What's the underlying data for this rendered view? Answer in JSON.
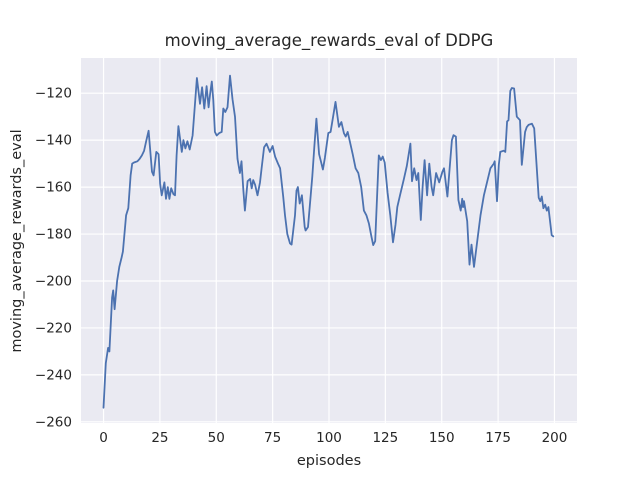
{
  "figure": {
    "background": "#ffffff"
  },
  "chart_data": {
    "type": "line",
    "title": "moving_average_rewards_eval of DDPG",
    "xlabel": "episodes",
    "ylabel": "moving_average_rewards_eval",
    "xlim": [
      -10,
      210
    ],
    "ylim": [
      -260.5,
      -105
    ],
    "grid": true,
    "legend_position": "none",
    "x_ticks": {
      "values": [
        0,
        25,
        50,
        75,
        100,
        125,
        150,
        175,
        200
      ],
      "labels": [
        "0",
        "25",
        "50",
        "75",
        "100",
        "125",
        "150",
        "175",
        "200"
      ]
    },
    "y_ticks": {
      "values": [
        -120,
        -140,
        -160,
        -180,
        -200,
        -220,
        -240,
        -260
      ],
      "labels": [
        "−120",
        "−140",
        "−160",
        "−180",
        "−200",
        "−220",
        "−240",
        "−260"
      ]
    },
    "style": {
      "axes_background": "#eaeaf2",
      "grid_color": "#ffffff",
      "line_color": "#4c72b0",
      "text_color": "#262626",
      "line_width": 1.8
    },
    "series": [
      {
        "name": "moving_average_rewards_eval",
        "x": [
          0,
          1,
          2,
          2.6,
          3.8,
          4.3,
          4.9,
          6,
          7,
          8,
          8.6,
          10,
          11,
          12,
          12.7,
          13.5,
          15,
          16,
          17,
          18,
          19,
          20,
          21.5,
          22.2,
          23.4,
          24.4,
          25.1,
          25.8,
          27,
          27.7,
          28.5,
          29.2,
          30,
          31,
          31.7,
          32.4,
          33.2,
          34.7,
          35.4,
          36.3,
          37.2,
          38.2,
          39.5,
          40.5,
          41.4,
          42.8,
          43.7,
          44.7,
          45.7,
          46.6,
          47.3,
          48,
          48.7,
          49.4,
          50.2,
          51.3,
          52.4,
          53.1,
          54,
          55,
          56.1,
          57.2,
          58.3,
          59.4,
          60.5,
          61.2,
          62,
          62.7,
          63.9,
          65,
          65.7,
          66.4,
          67.2,
          68.3,
          69.4,
          70.1,
          71.2,
          72.3,
          73.8,
          75,
          76.1,
          77.4,
          78.3,
          79.7,
          80.5,
          81.5,
          82.7,
          83.4,
          84.9,
          85.6,
          86.2,
          87,
          88,
          89.2,
          89.6,
          90.7,
          91.5,
          92.6,
          93.5,
          94.4,
          95.6,
          96.4,
          97.3,
          98.2,
          99.7,
          100.7,
          101.8,
          102.9,
          104.4,
          105.5,
          106.6,
          107.4,
          108.3,
          109.6,
          110.5,
          111.8,
          113,
          114.3,
          115.5,
          116.6,
          117.7,
          118.8,
          119.6,
          120.5,
          122.1,
          123,
          123.8,
          124.7,
          126,
          127.2,
          128.4,
          129.5,
          130.3,
          131.5,
          133.2,
          134.5,
          136.1,
          136.8,
          137.8,
          138.8,
          139.6,
          140.7,
          141.5,
          142.4,
          143.5,
          144.5,
          145.5,
          146.2,
          147.5,
          148.9,
          150.3,
          151,
          152.5,
          153.8,
          154.5,
          155.2,
          156.3,
          157.4,
          158.4,
          159.1,
          159.5,
          159.9,
          161.3,
          162.3,
          163.2,
          164.3,
          165.7,
          167.2,
          168.7,
          170.2,
          171.6,
          173.1,
          173.5,
          174.5,
          175.3,
          176,
          177.5,
          178.2,
          179,
          179.6,
          180.4,
          181.1,
          182.1,
          183.3,
          184.7,
          185.5,
          187,
          187.7,
          188.5,
          190,
          191,
          193,
          193.7,
          194.4,
          195.1,
          195.9,
          196.6,
          197.3,
          198.8,
          199.5
        ],
        "y": [
          -254,
          -235,
          -228.5,
          -230,
          -207,
          -204,
          -212,
          -200,
          -194,
          -190,
          -187.5,
          -172,
          -169,
          -155,
          -150,
          -149.5,
          -149,
          -148,
          -146.5,
          -144.5,
          -140,
          -136,
          -153.5,
          -155,
          -145,
          -146,
          -158.5,
          -163.5,
          -158,
          -165,
          -160,
          -165,
          -160.5,
          -163,
          -163.5,
          -146.5,
          -134,
          -145,
          -140,
          -143.5,
          -140.5,
          -144,
          -138,
          -125,
          -113.5,
          -124.5,
          -117.5,
          -126.5,
          -117,
          -126,
          -120,
          -115,
          -123,
          -136.5,
          -138,
          -137,
          -136.5,
          -126.5,
          -128,
          -126,
          -112.5,
          -122.5,
          -130,
          -148,
          -154,
          -149,
          -161,
          -170,
          -157.5,
          -156.5,
          -160.5,
          -157,
          -159,
          -163.5,
          -158,
          -152,
          -143,
          -141.5,
          -145,
          -142.5,
          -147,
          -150,
          -152,
          -164,
          -172,
          -180,
          -184,
          -184.5,
          -172,
          -161.5,
          -160,
          -167,
          -163.5,
          -177,
          -178.5,
          -177,
          -168,
          -155.5,
          -143,
          -130.8,
          -146,
          -149,
          -152.5,
          -147.5,
          -137,
          -136.5,
          -130,
          -123.7,
          -134.3,
          -132.3,
          -137,
          -138.5,
          -136.5,
          -142,
          -146,
          -152,
          -154,
          -160,
          -170,
          -172,
          -175.5,
          -181,
          -184.7,
          -183,
          -146.5,
          -148.5,
          -147,
          -149.5,
          -162.5,
          -172,
          -183.5,
          -176,
          -168.5,
          -163.5,
          -156.5,
          -151,
          -141.5,
          -157.5,
          -152,
          -157,
          -154,
          -174,
          -160,
          -148.5,
          -163.5,
          -150,
          -160,
          -163.5,
          -154,
          -158,
          -153.5,
          -152,
          -164,
          -148.5,
          -140,
          -137.9,
          -138.5,
          -165.5,
          -170,
          -165,
          -168.5,
          -166,
          -174.5,
          -193,
          -184.5,
          -194,
          -183.5,
          -172,
          -163.5,
          -157.5,
          -152,
          -150,
          -149,
          -166,
          -150.5,
          -145,
          -144.5,
          -145,
          -132,
          -131.5,
          -119,
          -117.8,
          -118,
          -130,
          -131.5,
          -150.5,
          -136.5,
          -134.5,
          -133.5,
          -133,
          -135,
          -164.5,
          -166,
          -164,
          -169,
          -167.5,
          -170,
          -168.5,
          -180.5,
          -181
        ]
      }
    ]
  }
}
